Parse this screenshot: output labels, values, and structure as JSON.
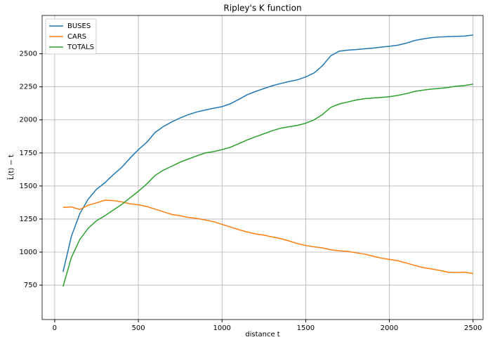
{
  "chart_data": {
    "type": "line",
    "title": "Ripley's K function",
    "x_label": "distance t",
    "y_label": "L̂(t) − t",
    "x": [
      50,
      100,
      150,
      200,
      250,
      300,
      350,
      400,
      450,
      500,
      550,
      600,
      650,
      700,
      750,
      800,
      850,
      900,
      950,
      1000,
      1050,
      1100,
      1150,
      1200,
      1250,
      1300,
      1350,
      1400,
      1450,
      1500,
      1550,
      1600,
      1650,
      1700,
      1750,
      1800,
      1850,
      1900,
      1950,
      2000,
      2050,
      2100,
      2150,
      2200,
      2250,
      2300,
      2350,
      2400,
      2450,
      2500
    ],
    "series": [
      {
        "name": "BUSES",
        "color": "#1f77b4",
        "values": [
          850,
          1120,
          1290,
          1400,
          1475,
          1525,
          1585,
          1640,
          1710,
          1775,
          1830,
          1905,
          1950,
          1985,
          2015,
          2040,
          2060,
          2075,
          2088,
          2100,
          2122,
          2155,
          2190,
          2215,
          2237,
          2258,
          2275,
          2290,
          2303,
          2325,
          2355,
          2410,
          2485,
          2520,
          2528,
          2532,
          2538,
          2543,
          2550,
          2557,
          2565,
          2580,
          2600,
          2612,
          2622,
          2627,
          2630,
          2632,
          2634,
          2642
        ]
      },
      {
        "name": "CARS",
        "color": "#ff7f0e",
        "values": [
          1338,
          1342,
          1322,
          1355,
          1372,
          1393,
          1390,
          1380,
          1365,
          1358,
          1345,
          1325,
          1305,
          1285,
          1275,
          1262,
          1255,
          1243,
          1230,
          1210,
          1190,
          1170,
          1152,
          1138,
          1128,
          1115,
          1102,
          1085,
          1065,
          1050,
          1040,
          1032,
          1018,
          1010,
          1005,
          995,
          985,
          970,
          955,
          945,
          935,
          918,
          900,
          883,
          873,
          862,
          848,
          846,
          848,
          838
        ]
      },
      {
        "name": "TOTALS",
        "color": "#2ca02c",
        "values": [
          740,
          960,
          1095,
          1180,
          1238,
          1275,
          1318,
          1360,
          1410,
          1460,
          1515,
          1580,
          1620,
          1650,
          1680,
          1705,
          1728,
          1750,
          1760,
          1775,
          1793,
          1820,
          1848,
          1872,
          1895,
          1918,
          1937,
          1948,
          1958,
          1975,
          2000,
          2040,
          2095,
          2120,
          2135,
          2150,
          2160,
          2165,
          2170,
          2175,
          2185,
          2198,
          2215,
          2225,
          2233,
          2238,
          2245,
          2255,
          2260,
          2270
        ]
      }
    ],
    "xlim": [
      -75,
      2560
    ],
    "ylim": [
      490,
      2790
    ],
    "xticks": [
      0,
      500,
      1000,
      1500,
      2000,
      2500
    ],
    "yticks": [
      750,
      1000,
      1250,
      1500,
      1750,
      2000,
      2250,
      2500
    ],
    "grid": true,
    "legend": "upper-left"
  }
}
